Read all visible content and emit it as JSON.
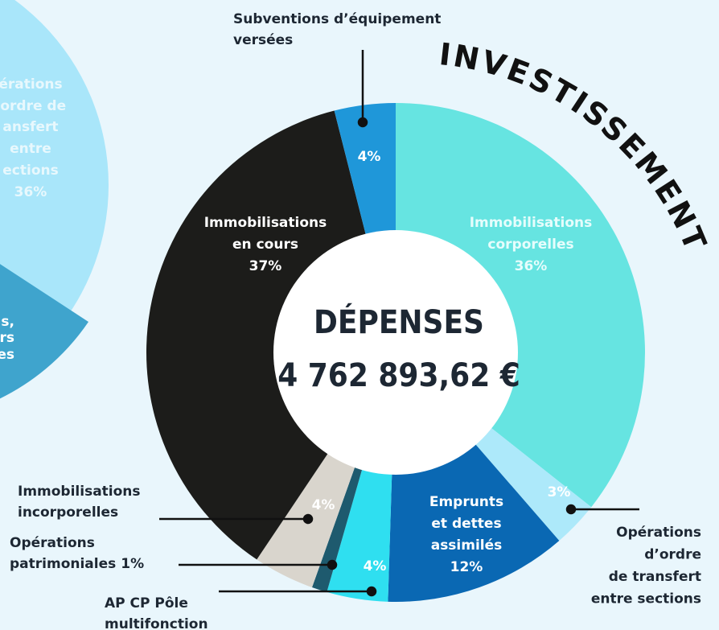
{
  "chart_data": {
    "type": "pie",
    "title": "DÉPENSES",
    "subtitle": "4 762 893,62 €",
    "annotation": "INVESTISSEMENT",
    "categories": [
      [
        "Immobilisations",
        "corporelles"
      ],
      [
        "Opérations",
        "d’ordre",
        "de transfert",
        "entre sections"
      ],
      [
        "Emprunts",
        "et dettes",
        "assimilés"
      ],
      [
        "AP CP Pôle",
        "multifonction"
      ],
      [
        "Opérations",
        "patrimoniales"
      ],
      [
        "Immobilisations",
        "incorporelles"
      ],
      [
        "Immobilisations",
        "en cours"
      ],
      [
        "Subventions d’équipement",
        "versées"
      ]
    ],
    "values": [
      36,
      3,
      12,
      4,
      1,
      4,
      37,
      4
    ],
    "value_labels": [
      "36%",
      "3%",
      "12%",
      "4%",
      "1%",
      "4%",
      "37%",
      "4%"
    ],
    "colors": [
      "#66e4e1",
      "#ade9fa",
      "#0a68b3",
      "#2fdff0",
      "#1e5a6e",
      "#d9d5cd",
      "#1c1c1a",
      "#1f97d9"
    ],
    "background_chart": {
      "labels": [
        "érations",
        "’ordre de",
        "ansfert",
        "entre",
        "ections",
        "36%"
      ],
      "labels_2": [
        "s,",
        "ers",
        "es"
      ]
    }
  }
}
